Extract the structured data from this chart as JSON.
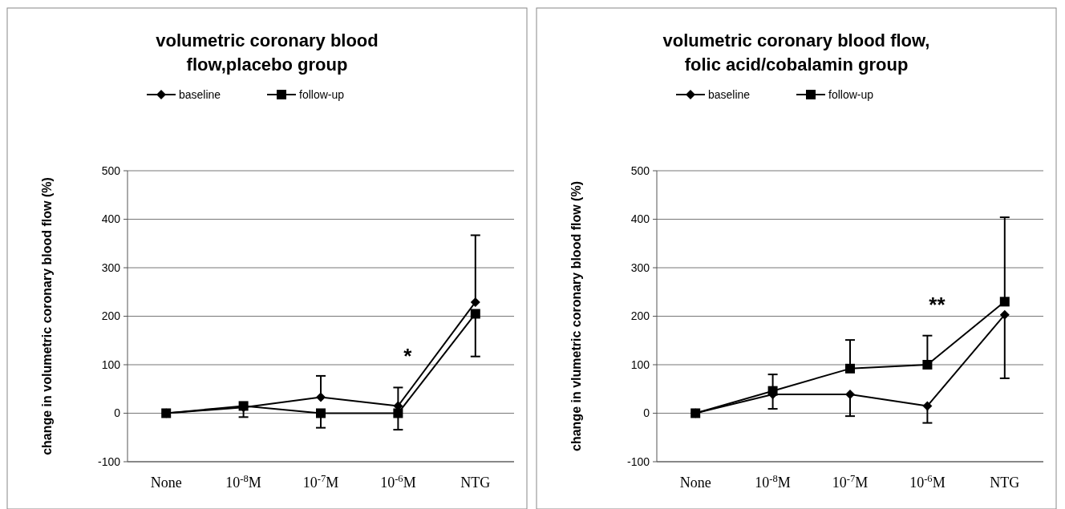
{
  "chart_data": [
    {
      "type": "line",
      "title": "volumetric coronary blood flow,placebo group",
      "ylabel": "change in volumetric coronary blood flow (%)",
      "categories": [
        "None",
        "10$^{-8}$M",
        "10$^{-7}$M",
        "10$^{-6}$M",
        "NTG"
      ],
      "ylim": [
        -100,
        500
      ],
      "yticks": [
        -100,
        0,
        100,
        200,
        300,
        400,
        500
      ],
      "grid": "y",
      "legend": "top",
      "line_style": "solid",
      "series": [
        {
          "name": "baseline",
          "color": "#000000",
          "marker": "diamond",
          "values": [
            0,
            12,
            33,
            15,
            229
          ],
          "errors": [
            null,
            null,
            [
              33,
              77
            ],
            [
              15,
              53
            ],
            [
              229,
              367
            ]
          ]
        },
        {
          "name": "follow-up",
          "color": "#000000",
          "marker": "square",
          "values": [
            0,
            15,
            0,
            0,
            205
          ],
          "errors": [
            null,
            [
              -8,
              15
            ],
            [
              -30,
              0
            ],
            [
              -34,
              0
            ],
            [
              117,
              205
            ]
          ]
        }
      ],
      "annotations": [
        "*"
      ]
    },
    {
      "type": "line",
      "title": "volumetric coronary blood flow, folic acid/cobalamin group",
      "ylabel": "change in vlumetric coronary blood flow (%)",
      "categories": [
        "None",
        "10$^{-8}$M",
        "10$^{-7}$M",
        "10$^{-6}$M",
        "NTG"
      ],
      "ylim": [
        -100,
        500
      ],
      "yticks": [
        -100,
        0,
        100,
        200,
        300,
        400,
        500
      ],
      "grid": "y",
      "legend": "top",
      "line_style": "solid",
      "series": [
        {
          "name": "baseline",
          "color": "#000000",
          "marker": "diamond",
          "values": [
            0,
            39,
            39,
            15,
            203
          ],
          "errors": [
            null,
            [
              9,
              39
            ],
            [
              -6,
              39
            ],
            [
              -20,
              15
            ],
            [
              72,
              203
            ]
          ]
        },
        {
          "name": "follow-up",
          "color": "#000000",
          "marker": "square",
          "values": [
            0,
            46,
            92,
            100,
            230
          ],
          "errors": [
            null,
            [
              46,
              80
            ],
            [
              92,
              151
            ],
            [
              100,
              160
            ],
            [
              230,
              404
            ]
          ]
        }
      ],
      "annotations": [
        "**"
      ]
    }
  ]
}
